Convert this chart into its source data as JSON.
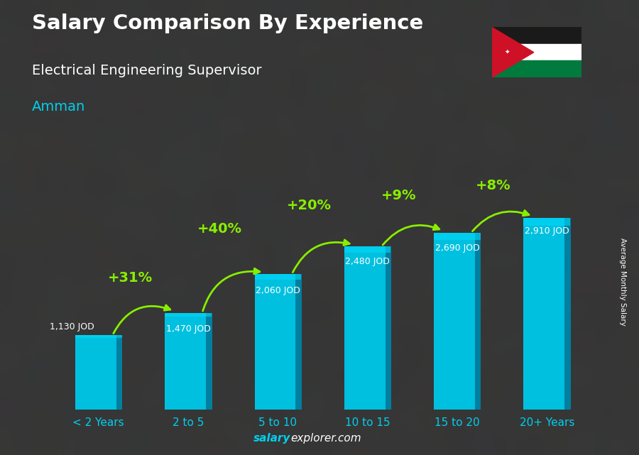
{
  "title_line1": "Salary Comparison By Experience",
  "title_line2": "Electrical Engineering Supervisor",
  "city": "Amman",
  "ylabel": "Average Monthly Salary",
  "categories": [
    "< 2 Years",
    "2 to 5",
    "5 to 10",
    "10 to 15",
    "15 to 20",
    "20+ Years"
  ],
  "values": [
    1130,
    1470,
    2060,
    2480,
    2690,
    2910
  ],
  "pct_changes": [
    "+31%",
    "+40%",
    "+20%",
    "+9%",
    "+8%"
  ],
  "value_labels": [
    "1,130 JOD",
    "1,470 JOD",
    "2,060 JOD",
    "2,480 JOD",
    "2,690 JOD",
    "2,910 JOD"
  ],
  "bar_color_face": "#00c0e0",
  "bar_color_right": "#007fa0",
  "bar_color_top": "#00d8f8",
  "text_color_white": "#ffffff",
  "text_color_cyan": "#00cfee",
  "text_color_green": "#88ee00",
  "watermark_salary": "salary",
  "watermark_rest": "explorer.com",
  "watermark_color_bold": "#00cfee",
  "watermark_color_rest": "#ffffff",
  "ylim": [
    0,
    3600
  ],
  "bar_width": 0.52,
  "bg_color": "#3a3a3a"
}
